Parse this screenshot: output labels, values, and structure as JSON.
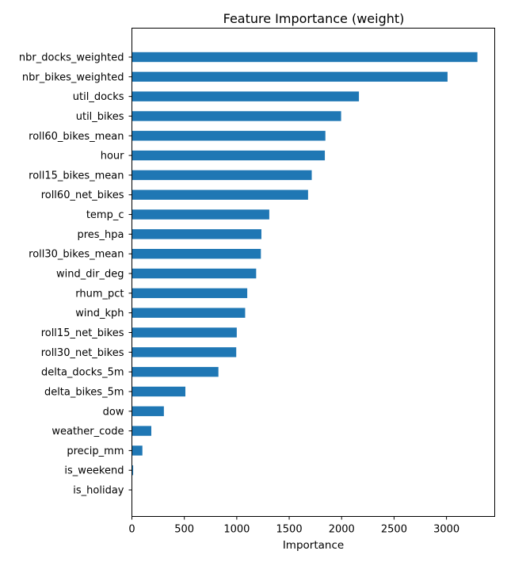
{
  "chart_data": {
    "type": "bar",
    "orientation": "horizontal",
    "title": "Feature Importance (weight)",
    "xlabel": "Importance",
    "ylabel": "",
    "xlim": [
      0,
      3460
    ],
    "xticks": [
      0,
      500,
      1000,
      1500,
      2000,
      2500,
      3000
    ],
    "grid": false,
    "color": "#1f77b4",
    "categories": [
      "nbr_docks_weighted",
      "nbr_bikes_weighted",
      "util_docks",
      "util_bikes",
      "roll60_bikes_mean",
      "hour",
      "roll15_bikes_mean",
      "roll60_net_bikes",
      "temp_c",
      "pres_hpa",
      "roll30_bikes_mean",
      "wind_dir_deg",
      "rhum_pct",
      "wind_kph",
      "roll15_net_bikes",
      "roll30_net_bikes",
      "delta_docks_5m",
      "delta_bikes_5m",
      "dow",
      "weather_code",
      "precip_mm",
      "is_weekend",
      "is_holiday"
    ],
    "values": [
      3295,
      3010,
      2165,
      1995,
      1845,
      1840,
      1715,
      1680,
      1310,
      1235,
      1230,
      1185,
      1100,
      1080,
      1000,
      995,
      825,
      510,
      305,
      185,
      100,
      12,
      3
    ]
  }
}
